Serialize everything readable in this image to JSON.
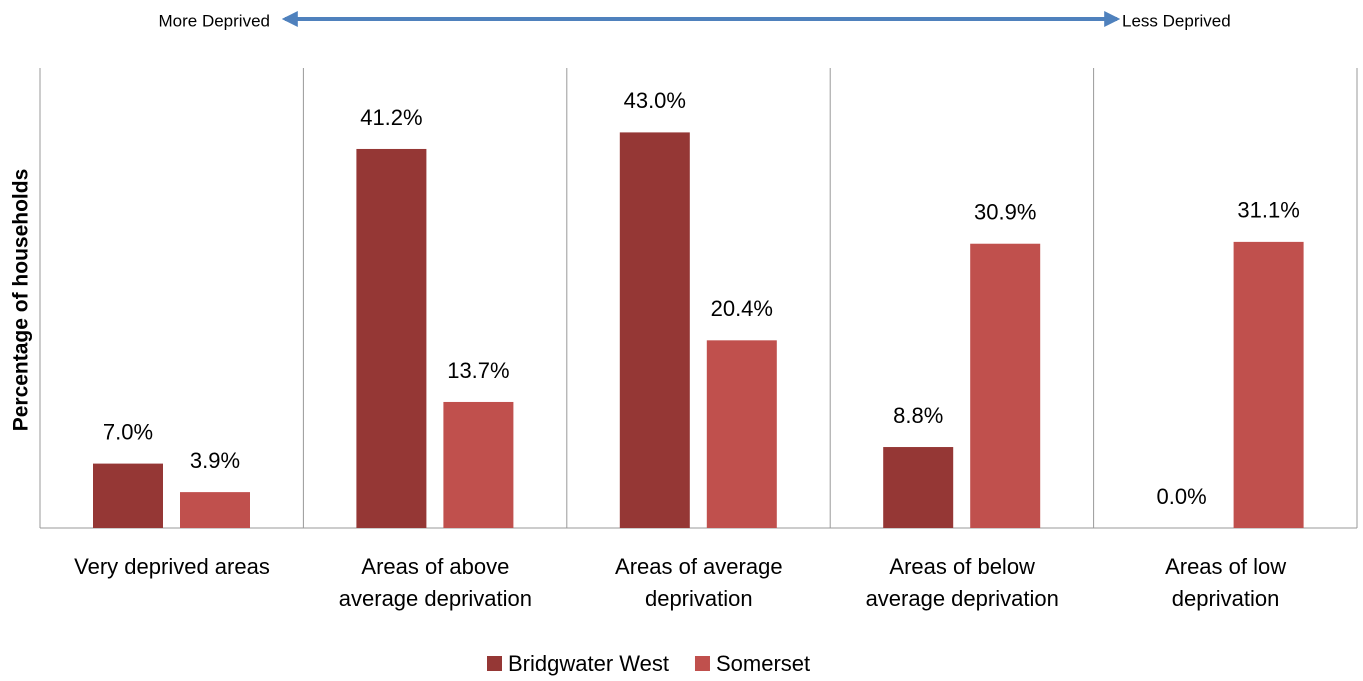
{
  "chart_data": {
    "type": "bar",
    "annotations": [
      "More Deprived",
      "Less Deprived"
    ],
    "ylabel": "Percentage of households",
    "categories": [
      "Very deprived areas",
      "Areas of above\naverage deprivation",
      "Areas of average\ndeprivation",
      "Areas of below\naverage deprivation",
      "Areas of low\ndeprivation"
    ],
    "series": [
      {
        "name": "Bridgwater West",
        "color": "#953735",
        "values": [
          7.0,
          41.2,
          43.0,
          8.8,
          0.0
        ],
        "value_labels": [
          "7.0%",
          "41.2%",
          "43.0%",
          "8.8%",
          "0.0%"
        ]
      },
      {
        "name": "Somerset",
        "color": "#c0504d",
        "values": [
          3.9,
          13.7,
          20.4,
          30.9,
          31.1
        ],
        "value_labels": [
          "3.9%",
          "13.7%",
          "20.4%",
          "30.9%",
          "31.1%"
        ]
      }
    ],
    "ylim": [
      0,
      50
    ],
    "grid": false,
    "legend": "bottom"
  }
}
